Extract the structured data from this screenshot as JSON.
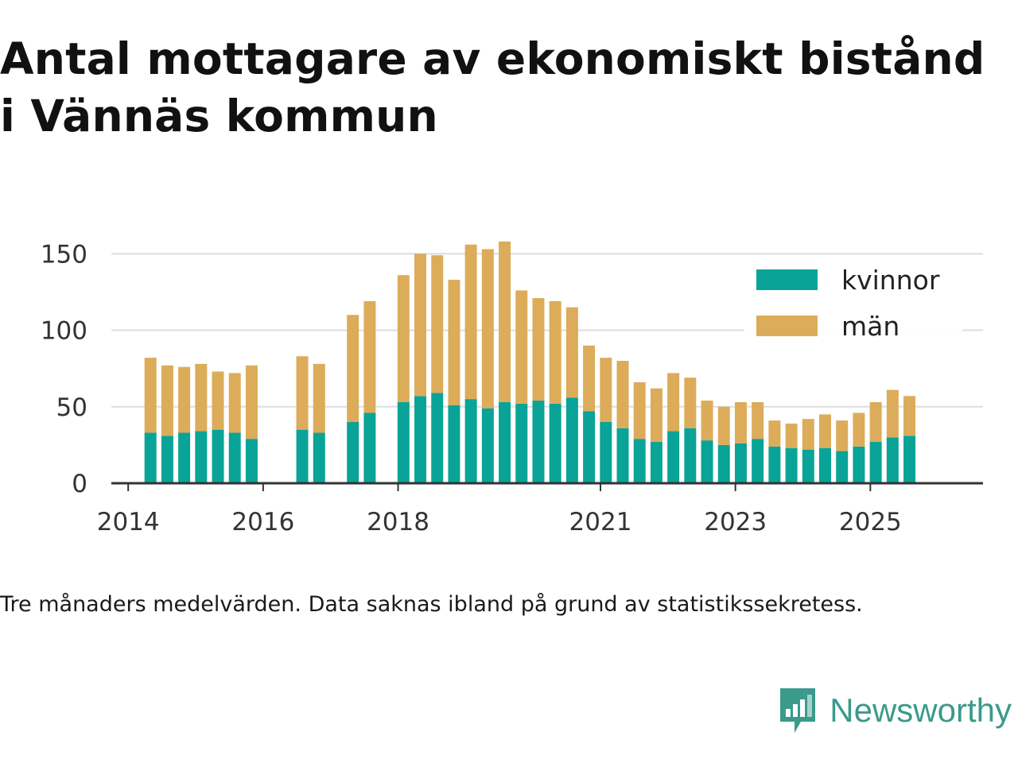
{
  "title_lines": [
    "Antal mottagare av ekonomiskt bistånd",
    "i Vännäs kommun"
  ],
  "note": "Tre månaders medelvärden. Data saknas ibland på grund av statistikssekretess.",
  "brand": "Newsworthy",
  "colors": {
    "kvinnor": "#0aa397",
    "man": "#dcac5a",
    "grid": "#dddddd",
    "axis": "#333333",
    "brand": "#3a9a8c"
  },
  "legend": [
    {
      "key": "kvinnor",
      "label": "kvinnor"
    },
    {
      "key": "man",
      "label": "män"
    }
  ],
  "chart_data": {
    "type": "bar",
    "stacked": true,
    "xlabel": "",
    "ylabel": "",
    "ylim": [
      0,
      160
    ],
    "y_ticks": [
      0,
      50,
      100,
      150
    ],
    "x_range": [
      2013.75,
      2026.67
    ],
    "x_ticks": [
      2014,
      2016,
      2018,
      2021,
      2023,
      2025
    ],
    "x_tick_labels": [
      "2014",
      "2016",
      "2018",
      "2021",
      "2023",
      "2025"
    ],
    "legend_position": "top-right",
    "series": [
      {
        "name": "kvinnor",
        "points": [
          {
            "x": 2014.33,
            "y": 33
          },
          {
            "x": 2014.58,
            "y": 31
          },
          {
            "x": 2014.83,
            "y": 33
          },
          {
            "x": 2015.08,
            "y": 34
          },
          {
            "x": 2015.33,
            "y": 35
          },
          {
            "x": 2015.58,
            "y": 33
          },
          {
            "x": 2015.83,
            "y": 29
          },
          {
            "x": 2016.58,
            "y": 35
          },
          {
            "x": 2016.83,
            "y": 33
          },
          {
            "x": 2017.33,
            "y": 40
          },
          {
            "x": 2017.58,
            "y": 46
          },
          {
            "x": 2018.08,
            "y": 53
          },
          {
            "x": 2018.33,
            "y": 57
          },
          {
            "x": 2018.58,
            "y": 59
          },
          {
            "x": 2018.83,
            "y": 51
          },
          {
            "x": 2019.08,
            "y": 55
          },
          {
            "x": 2019.33,
            "y": 49
          },
          {
            "x": 2019.58,
            "y": 53
          },
          {
            "x": 2019.83,
            "y": 52
          },
          {
            "x": 2020.08,
            "y": 54
          },
          {
            "x": 2020.33,
            "y": 52
          },
          {
            "x": 2020.58,
            "y": 56
          },
          {
            "x": 2020.83,
            "y": 47
          },
          {
            "x": 2021.08,
            "y": 40
          },
          {
            "x": 2021.33,
            "y": 36
          },
          {
            "x": 2021.58,
            "y": 29
          },
          {
            "x": 2021.83,
            "y": 27
          },
          {
            "x": 2022.08,
            "y": 34
          },
          {
            "x": 2022.33,
            "y": 36
          },
          {
            "x": 2022.58,
            "y": 28
          },
          {
            "x": 2022.83,
            "y": 25
          },
          {
            "x": 2023.08,
            "y": 26
          },
          {
            "x": 2023.33,
            "y": 29
          },
          {
            "x": 2023.58,
            "y": 24
          },
          {
            "x": 2023.83,
            "y": 23
          },
          {
            "x": 2024.08,
            "y": 22
          },
          {
            "x": 2024.33,
            "y": 23
          },
          {
            "x": 2024.58,
            "y": 21
          },
          {
            "x": 2024.83,
            "y": 24
          },
          {
            "x": 2025.08,
            "y": 27
          },
          {
            "x": 2025.33,
            "y": 30
          },
          {
            "x": 2025.58,
            "y": 31
          }
        ]
      },
      {
        "name": "män",
        "points": [
          {
            "x": 2014.33,
            "y": 49
          },
          {
            "x": 2014.58,
            "y": 46
          },
          {
            "x": 2014.83,
            "y": 43
          },
          {
            "x": 2015.08,
            "y": 44
          },
          {
            "x": 2015.33,
            "y": 38
          },
          {
            "x": 2015.58,
            "y": 39
          },
          {
            "x": 2015.83,
            "y": 48
          },
          {
            "x": 2016.58,
            "y": 48
          },
          {
            "x": 2016.83,
            "y": 45
          },
          {
            "x": 2017.33,
            "y": 70
          },
          {
            "x": 2017.58,
            "y": 73
          },
          {
            "x": 2018.08,
            "y": 83
          },
          {
            "x": 2018.33,
            "y": 93
          },
          {
            "x": 2018.58,
            "y": 90
          },
          {
            "x": 2018.83,
            "y": 82
          },
          {
            "x": 2019.08,
            "y": 101
          },
          {
            "x": 2019.33,
            "y": 104
          },
          {
            "x": 2019.58,
            "y": 105
          },
          {
            "x": 2019.83,
            "y": 74
          },
          {
            "x": 2020.08,
            "y": 67
          },
          {
            "x": 2020.33,
            "y": 67
          },
          {
            "x": 2020.58,
            "y": 59
          },
          {
            "x": 2020.83,
            "y": 43
          },
          {
            "x": 2021.08,
            "y": 42
          },
          {
            "x": 2021.33,
            "y": 44
          },
          {
            "x": 2021.58,
            "y": 37
          },
          {
            "x": 2021.83,
            "y": 35
          },
          {
            "x": 2022.08,
            "y": 38
          },
          {
            "x": 2022.33,
            "y": 33
          },
          {
            "x": 2022.58,
            "y": 26
          },
          {
            "x": 2022.83,
            "y": 25
          },
          {
            "x": 2023.08,
            "y": 27
          },
          {
            "x": 2023.33,
            "y": 24
          },
          {
            "x": 2023.58,
            "y": 17
          },
          {
            "x": 2023.83,
            "y": 16
          },
          {
            "x": 2024.08,
            "y": 20
          },
          {
            "x": 2024.33,
            "y": 22
          },
          {
            "x": 2024.58,
            "y": 20
          },
          {
            "x": 2024.83,
            "y": 22
          },
          {
            "x": 2025.08,
            "y": 26
          },
          {
            "x": 2025.33,
            "y": 31
          },
          {
            "x": 2025.58,
            "y": 26
          }
        ]
      }
    ]
  }
}
